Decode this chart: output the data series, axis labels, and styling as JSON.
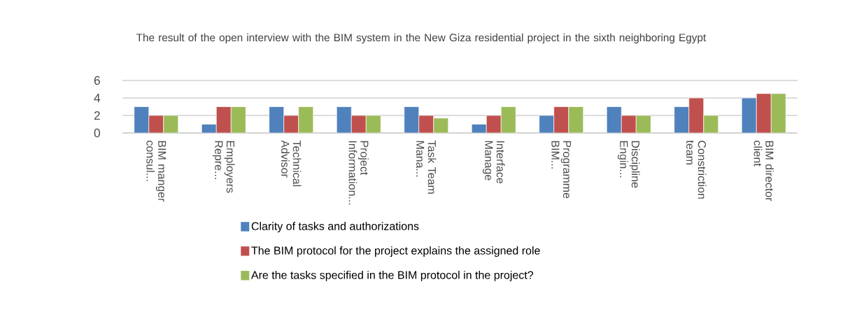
{
  "chart_data": {
    "type": "bar",
    "title": "The result of the open interview with the BIM system in the New Giza residential project in the sixth neighboring Egypt",
    "categories": [
      "BIM manger consul...",
      "Employers Repre...",
      "Technical Advisor",
      "Project Information...",
      "Task Team Mana...",
      "Interface Manage",
      "Programme BIM...",
      "Discipline Engin...",
      "Constriction team",
      "BIM director client"
    ],
    "series": [
      {
        "name": "Clarity of tasks and authorizations",
        "color": "#4f81bd",
        "values": [
          3,
          1,
          3,
          3,
          3,
          1,
          2,
          3,
          3,
          4
        ]
      },
      {
        "name": "The BIM protocol for the project explains the assigned role",
        "color": "#c0504d",
        "values": [
          2,
          3,
          2,
          2,
          2,
          2,
          3,
          2,
          4,
          4.5
        ]
      },
      {
        "name": "Are the tasks specified in the BIM protocol in the project?",
        "color": "#9bbb59",
        "values": [
          2,
          3,
          3,
          2,
          1.7,
          3,
          3,
          2,
          2,
          4.5
        ]
      }
    ],
    "ylim": [
      0,
      6
    ],
    "yticks": [
      0,
      2,
      4,
      6
    ],
    "grid": "y",
    "legend": "bottom"
  }
}
